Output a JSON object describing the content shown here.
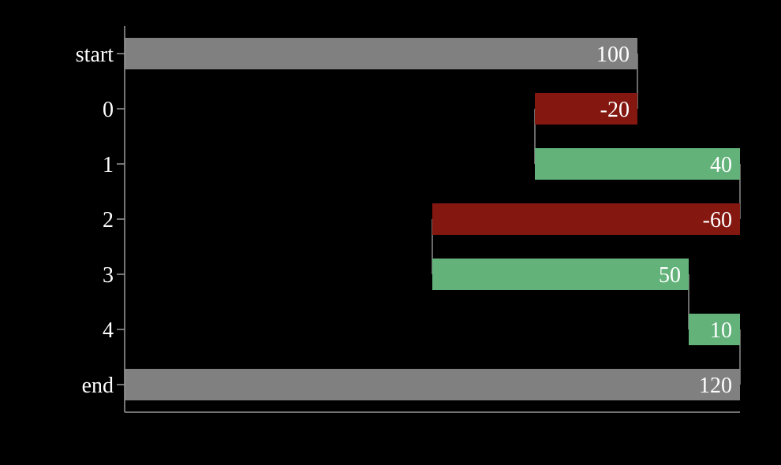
{
  "chart_data": {
    "type": "waterfall",
    "orientation": "horizontal",
    "categories": [
      "start",
      "0",
      "1",
      "2",
      "3",
      "4",
      "end"
    ],
    "values": [
      100,
      -20,
      40,
      -60,
      50,
      10,
      120
    ],
    "labels": [
      "100",
      "-20",
      "40",
      "-60",
      "50",
      "10",
      "120"
    ],
    "kinds": [
      "total",
      "decrease",
      "increase",
      "decrease",
      "increase",
      "increase",
      "total"
    ],
    "xlim": [
      0,
      120
    ],
    "grid": false,
    "colors": {
      "total": "#808080",
      "increase": "#62b27a",
      "decrease": "#841811",
      "background": "#000000",
      "text": "#ffffff"
    }
  }
}
